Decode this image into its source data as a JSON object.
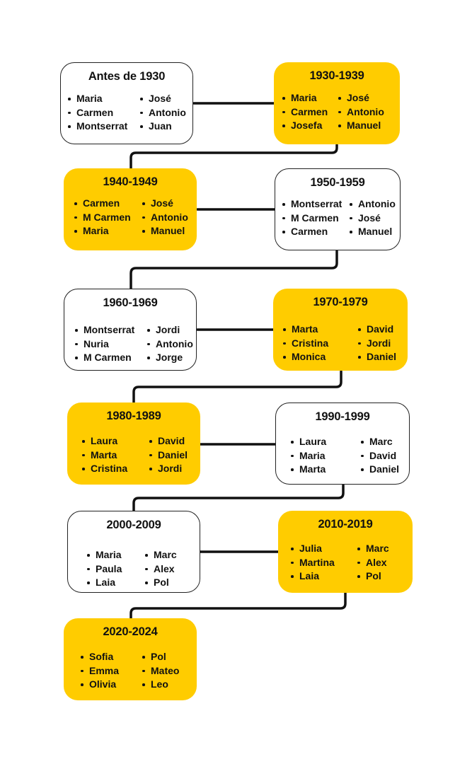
{
  "periods": [
    {
      "title": "Antes de 1930",
      "color": "white",
      "col1": [
        "Maria",
        "Carmen",
        "Montserrat"
      ],
      "col2": [
        "José",
        "Antonio",
        "Juan"
      ]
    },
    {
      "title": "1930-1939",
      "color": "yellow",
      "col1": [
        "Maria",
        "Carmen",
        "Josefa"
      ],
      "col2": [
        "José",
        "Antonio",
        "Manuel"
      ]
    },
    {
      "title": "1940-1949",
      "color": "yellow",
      "col1": [
        "Carmen",
        "M Carmen",
        "Maria"
      ],
      "col2": [
        "José",
        "Antonio",
        "Manuel"
      ]
    },
    {
      "title": "1950-1959",
      "color": "white",
      "col1": [
        "Montserrat",
        "M Carmen",
        "Carmen"
      ],
      "col2": [
        "Antonio",
        "José",
        "Manuel"
      ]
    },
    {
      "title": "1960-1969",
      "color": "white",
      "col1": [
        "Montserrat",
        "Nuria",
        "M Carmen"
      ],
      "col2": [
        "Jordi",
        "Antonio",
        "Jorge"
      ]
    },
    {
      "title": "1970-1979",
      "color": "yellow",
      "col1": [
        "Marta",
        "Cristina",
        "Monica"
      ],
      "col2": [
        "David",
        "Jordi",
        "Daniel"
      ]
    },
    {
      "title": "1980-1989",
      "color": "yellow",
      "col1": [
        "Laura",
        "Marta",
        "Cristina"
      ],
      "col2": [
        "David",
        "Daniel",
        "Jordi"
      ]
    },
    {
      "title": "1990-1999",
      "color": "white",
      "col1": [
        "Laura",
        "Maria",
        "Marta"
      ],
      "col2": [
        "Marc",
        "David",
        "Daniel"
      ]
    },
    {
      "title": "2000-2009",
      "color": "white",
      "col1": [
        "Maria",
        "Paula",
        "Laia"
      ],
      "col2": [
        "Marc",
        "Alex",
        "Pol"
      ]
    },
    {
      "title": "2010-2019",
      "color": "yellow",
      "col1": [
        "Julia",
        "Martina",
        "Laia"
      ],
      "col2": [
        "Marc",
        "Alex",
        "Pol"
      ]
    },
    {
      "title": "2020-2024",
      "color": "yellow",
      "col1": [
        "Sofia",
        "Emma",
        "Olivia"
      ],
      "col2": [
        "Pol",
        "Mateo",
        "Leo"
      ]
    }
  ],
  "colors": {
    "accent": "#ffcc00",
    "line": "#111111"
  }
}
